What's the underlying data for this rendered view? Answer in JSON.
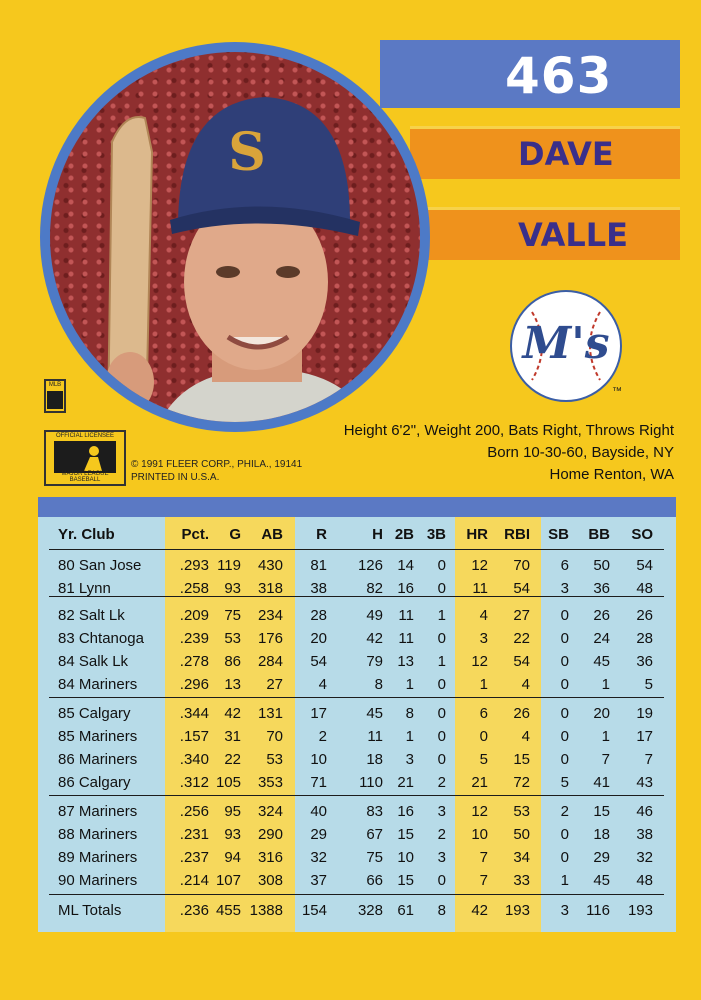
{
  "card": {
    "number": "463",
    "first_name": "DAVE",
    "last_name": "VALLE",
    "team_logo_text": "M's",
    "tm": "™"
  },
  "bio": {
    "line1": "Height 6'2\", Weight 200, Bats Right, Throws Right",
    "line2": "Born 10-30-60, Bayside, NY",
    "line3": "Home Renton, WA"
  },
  "copyright": {
    "line1": "© 1991 FLEER CORP., PHILA., 19141",
    "line2": "PRINTED IN U.S.A."
  },
  "logos": {
    "mlb_small": "MLB",
    "official_top": "OFFICIAL LICENSEE",
    "official_bottom": "MAJOR LEAGUE BASEBALL"
  },
  "stats": {
    "columns": [
      "Yr. Club",
      "Pct.",
      "G",
      "AB",
      "R",
      "H",
      "2B",
      "3B",
      "HR",
      "RBI",
      "SB",
      "BB",
      "SO"
    ],
    "rows": [
      [
        "80 San Jose",
        ".293",
        "119",
        "430",
        "81",
        "126",
        "14",
        "0",
        "12",
        "70",
        "6",
        "50",
        "54"
      ],
      [
        "81 Lynn",
        ".258",
        "93",
        "318",
        "38",
        "82",
        "16",
        "0",
        "11",
        "54",
        "3",
        "36",
        "48"
      ],
      [
        "82 Salt Lk",
        ".209",
        "75",
        "234",
        "28",
        "49",
        "11",
        "1",
        "4",
        "27",
        "0",
        "26",
        "26"
      ],
      [
        "83 Chtanoga",
        ".239",
        "53",
        "176",
        "20",
        "42",
        "11",
        "0",
        "3",
        "22",
        "0",
        "24",
        "28"
      ],
      [
        "84 Salk Lk",
        ".278",
        "86",
        "284",
        "54",
        "79",
        "13",
        "1",
        "12",
        "54",
        "0",
        "45",
        "36"
      ],
      [
        "84 Mariners",
        ".296",
        "13",
        "27",
        "4",
        "8",
        "1",
        "0",
        "1",
        "4",
        "0",
        "1",
        "5"
      ],
      [
        "85 Calgary",
        ".344",
        "42",
        "131",
        "17",
        "45",
        "8",
        "0",
        "6",
        "26",
        "0",
        "20",
        "19"
      ],
      [
        "85 Mariners",
        ".157",
        "31",
        "70",
        "2",
        "11",
        "1",
        "0",
        "0",
        "4",
        "0",
        "1",
        "17"
      ],
      [
        "86 Mariners",
        ".340",
        "22",
        "53",
        "10",
        "18",
        "3",
        "0",
        "5",
        "15",
        "0",
        "7",
        "7"
      ],
      [
        "86 Calgary",
        ".312",
        "105",
        "353",
        "71",
        "110",
        "21",
        "2",
        "21",
        "72",
        "5",
        "41",
        "43"
      ],
      [
        "87 Mariners",
        ".256",
        "95",
        "324",
        "40",
        "83",
        "16",
        "3",
        "12",
        "53",
        "2",
        "15",
        "46"
      ],
      [
        "88 Mariners",
        ".231",
        "93",
        "290",
        "29",
        "67",
        "15",
        "2",
        "10",
        "50",
        "0",
        "18",
        "38"
      ],
      [
        "89 Mariners",
        ".237",
        "94",
        "316",
        "32",
        "75",
        "10",
        "3",
        "7",
        "34",
        "0",
        "29",
        "32"
      ],
      [
        "90 Mariners",
        ".214",
        "107",
        "308",
        "37",
        "66",
        "15",
        "0",
        "7",
        "33",
        "1",
        "45",
        "48"
      ]
    ],
    "totals": [
      "ML Totals",
      ".236",
      "455",
      "1388",
      "154",
      "328",
      "61",
      "8",
      "42",
      "193",
      "3",
      "116",
      "193"
    ]
  },
  "colors": {
    "card_yellow": "#f6c81d",
    "band_blue": "#5b79c4",
    "name_orange": "#ef921c",
    "name_text": "#3a2f8a",
    "stat_blue": "#b7dbe8",
    "stat_yellow": "#f6d85c"
  },
  "icons": {
    "photo": "player-portrait",
    "team_logo": "mariners-logo-icon",
    "mlb_logo": "mlb-logo-icon"
  }
}
